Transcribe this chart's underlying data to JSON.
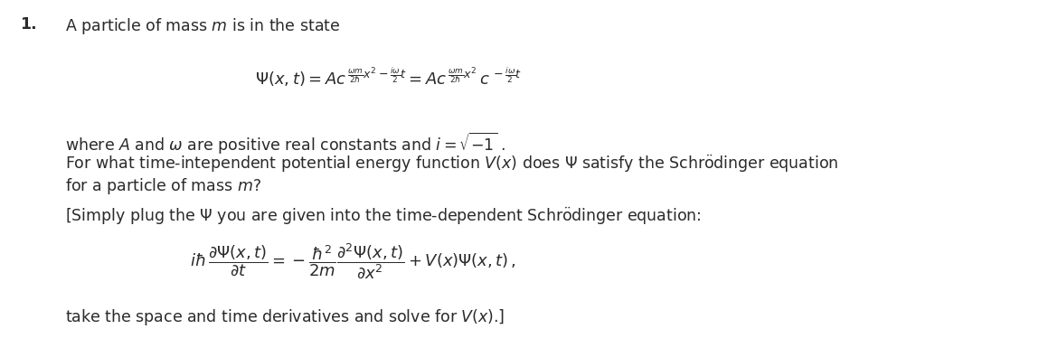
{
  "background_color": "#ffffff",
  "fig_width": 11.49,
  "fig_height": 3.85,
  "dpi": 100,
  "text_color": "#2a2a2a",
  "font_size": 12.5
}
